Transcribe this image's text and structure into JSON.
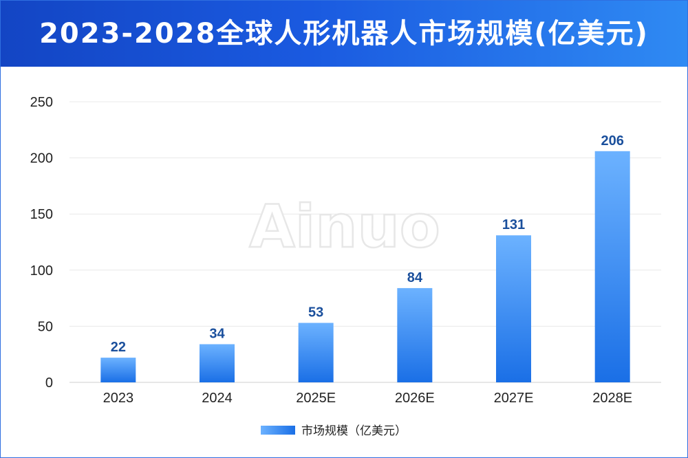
{
  "chart_data": {
    "type": "bar",
    "title": "2023-2028全球人形机器人市场规模(亿美元)",
    "categories": [
      "2023",
      "2024",
      "2025E",
      "2026E",
      "2027E",
      "2028E"
    ],
    "series": [
      {
        "name": "市场规模（亿美元）",
        "values": [
          22,
          34,
          53,
          84,
          131,
          206
        ]
      }
    ],
    "ylim": [
      0,
      250
    ],
    "yticks": [
      0,
      50,
      100,
      150,
      200,
      250
    ],
    "xlabel": "",
    "ylabel": "",
    "grid": true,
    "legend": "bottom-center",
    "data_labels": true
  },
  "watermark": "Ainuo",
  "colors": {
    "header_left": "#1345c4",
    "header_right": "#2f8af3",
    "bar_top": "#6cb2ff",
    "bar_bottom": "#1a6fe6",
    "value_label": "#1a4f9c"
  }
}
